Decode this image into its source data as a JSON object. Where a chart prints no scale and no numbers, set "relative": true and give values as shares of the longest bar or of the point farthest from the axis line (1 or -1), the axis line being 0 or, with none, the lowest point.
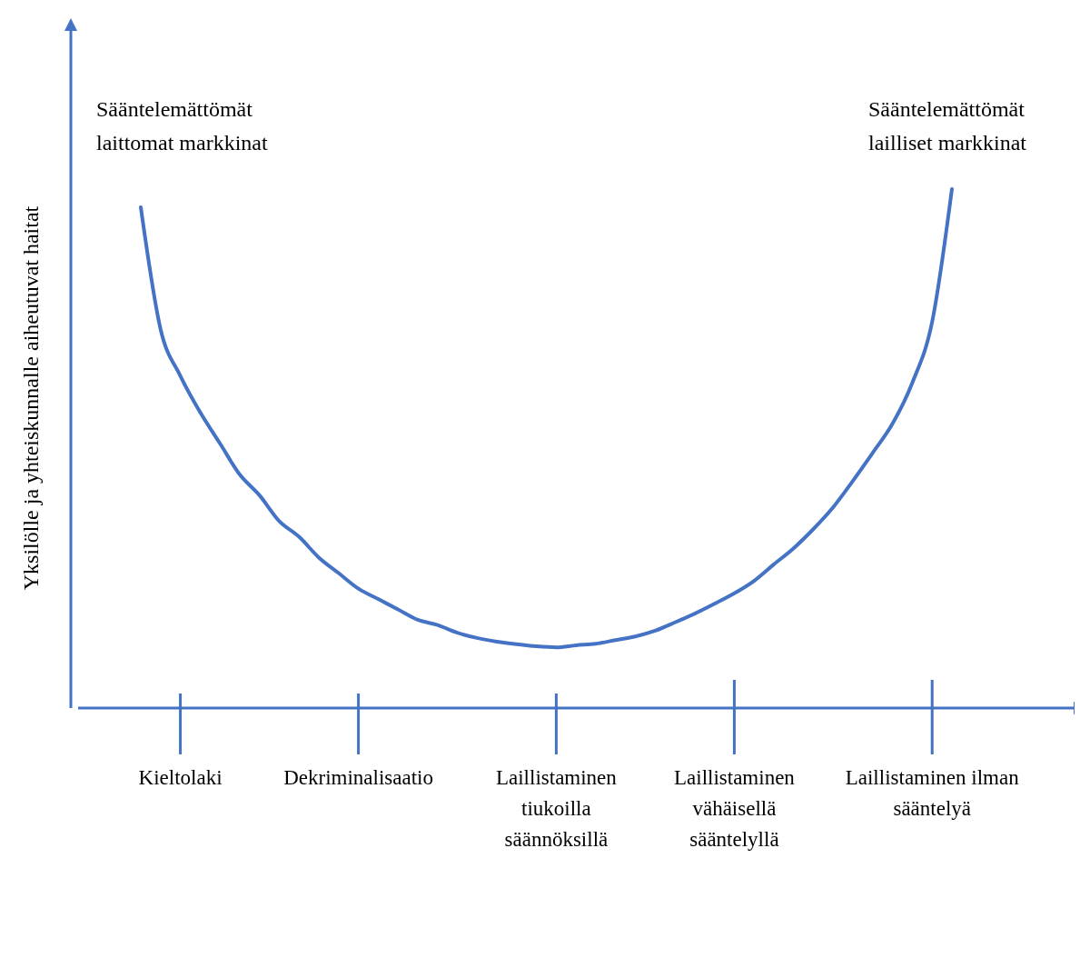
{
  "chart_data": {
    "type": "line",
    "relative": true,
    "ylabel": "Yksilölle ja yhteiskunnalle aiheutuvat haitat",
    "categories": [
      null,
      null,
      "Kieltolaki",
      null,
      null,
      null,
      null,
      null,
      null,
      null,
      null,
      "Dekriminalisaatio",
      null,
      null,
      null,
      null,
      null,
      null,
      null,
      null,
      null,
      "Laillistaminen tiukoilla säännöksillä",
      null,
      null,
      null,
      null,
      null,
      null,
      null,
      null,
      "Laillistaminen vähäisellä sääntelyllä",
      null,
      null,
      null,
      null,
      null,
      null,
      null,
      null,
      null,
      "Laillistaminen ilman sääntelyä",
      null
    ],
    "series": [
      {
        "color": "#4472c4",
        "values": [
          0.965,
          0.73,
          0.64,
          0.57,
          0.51,
          0.45,
          0.41,
          0.36,
          0.33,
          0.29,
          0.26,
          0.23,
          0.21,
          0.19,
          0.17,
          0.16,
          0.145,
          0.135,
          0.128,
          0.123,
          0.119,
          0.117,
          0.121,
          0.124,
          0.131,
          0.138,
          0.149,
          0.165,
          0.182,
          0.201,
          0.221,
          0.245,
          0.277,
          0.308,
          0.345,
          0.387,
          0.438,
          0.492,
          0.548,
          0.627,
          0.744,
          1.0
        ]
      }
    ],
    "annotations": [
      "Sääntelemättömät laittomat markkinat",
      "Sääntelemättömät lailliset markkinat"
    ],
    "marker": "none",
    "line_style": "solid"
  }
}
